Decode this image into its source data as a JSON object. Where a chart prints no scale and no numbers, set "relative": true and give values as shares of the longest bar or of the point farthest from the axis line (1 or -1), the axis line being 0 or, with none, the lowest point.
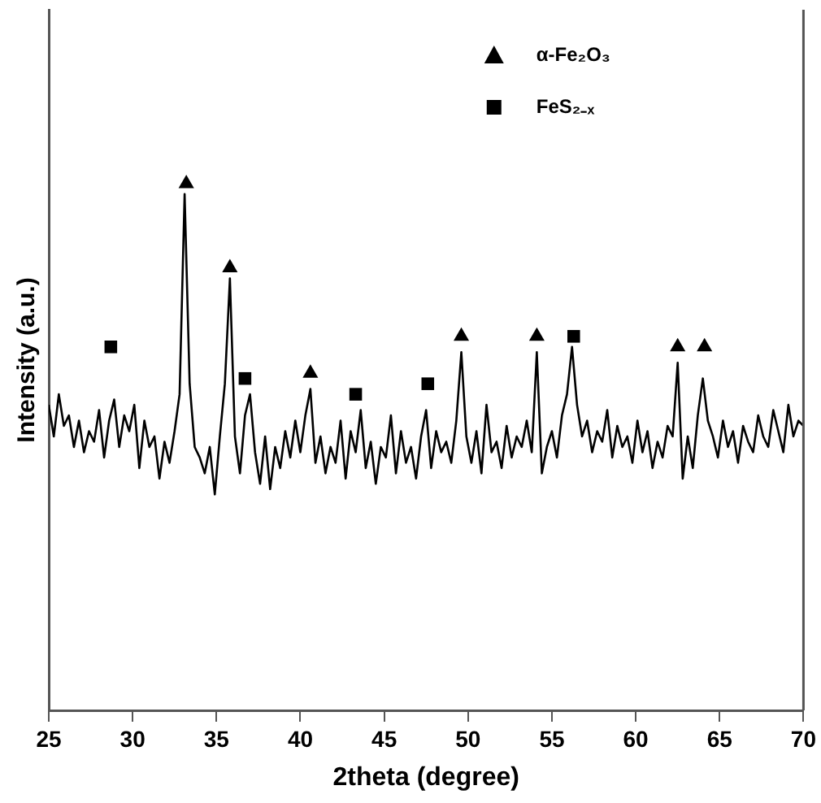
{
  "chart_data": {
    "type": "line",
    "xlabel": "2theta (degree)",
    "ylabel": "Intensity (a.u.)",
    "relative": true,
    "xlim": [
      25,
      70
    ],
    "xticks": [
      25,
      30,
      35,
      40,
      45,
      50,
      55,
      60,
      65,
      70
    ],
    "tick_labels": "x",
    "grid": false,
    "legend": "top right",
    "series": [
      {
        "color": "#000000",
        "marker": "none",
        "x": [
          25.0,
          25.3,
          25.6,
          25.9,
          26.2,
          26.5,
          26.8,
          27.1,
          27.4,
          27.7,
          28.0,
          28.3,
          28.6,
          28.9,
          29.2,
          29.5,
          29.8,
          30.1,
          30.4,
          30.7,
          31.0,
          31.3,
          31.6,
          31.9,
          32.2,
          32.5,
          32.8,
          33.1,
          33.4,
          33.7,
          34.0,
          34.3,
          34.6,
          34.9,
          35.2,
          35.5,
          35.8,
          36.1,
          36.4,
          36.7,
          37.0,
          37.3,
          37.6,
          37.9,
          38.2,
          38.5,
          38.8,
          39.1,
          39.4,
          39.7,
          40.0,
          40.3,
          40.6,
          40.9,
          41.2,
          41.5,
          41.8,
          42.1,
          42.4,
          42.7,
          43.0,
          43.3,
          43.6,
          43.9,
          44.2,
          44.5,
          44.8,
          45.1,
          45.4,
          45.7,
          46.0,
          46.3,
          46.6,
          46.9,
          47.2,
          47.5,
          47.8,
          48.1,
          48.4,
          48.7,
          49.0,
          49.3,
          49.6,
          49.9,
          50.2,
          50.5,
          50.8,
          51.1,
          51.4,
          51.7,
          52.0,
          52.3,
          52.6,
          52.9,
          53.2,
          53.5,
          53.8,
          54.1,
          54.4,
          54.7,
          55.0,
          55.3,
          55.6,
          55.9,
          56.2,
          56.5,
          56.8,
          57.1,
          57.4,
          57.7,
          58.0,
          58.3,
          58.6,
          58.9,
          59.2,
          59.5,
          59.8,
          60.1,
          60.4,
          60.7,
          61.0,
          61.3,
          61.6,
          61.9,
          62.2,
          62.5,
          62.8,
          63.1,
          63.4,
          63.7,
          64.0,
          64.3,
          64.6,
          64.9,
          65.2,
          65.5,
          65.8,
          66.1,
          66.4,
          66.7,
          67.0,
          67.3,
          67.6,
          67.9,
          68.2,
          68.5,
          68.8,
          69.1,
          69.4,
          69.7,
          70.0
        ],
        "values": [
          0.58,
          0.52,
          0.6,
          0.54,
          0.56,
          0.5,
          0.55,
          0.49,
          0.53,
          0.51,
          0.57,
          0.48,
          0.55,
          0.59,
          0.5,
          0.56,
          0.53,
          0.58,
          0.46,
          0.55,
          0.5,
          0.52,
          0.44,
          0.51,
          0.47,
          0.53,
          0.6,
          0.98,
          0.62,
          0.5,
          0.48,
          0.45,
          0.5,
          0.41,
          0.52,
          0.62,
          0.82,
          0.52,
          0.45,
          0.56,
          0.6,
          0.49,
          0.43,
          0.52,
          0.42,
          0.5,
          0.46,
          0.53,
          0.48,
          0.55,
          0.49,
          0.56,
          0.61,
          0.47,
          0.52,
          0.45,
          0.5,
          0.47,
          0.55,
          0.44,
          0.53,
          0.49,
          0.57,
          0.46,
          0.51,
          0.43,
          0.5,
          0.48,
          0.56,
          0.45,
          0.53,
          0.47,
          0.5,
          0.44,
          0.52,
          0.57,
          0.46,
          0.53,
          0.49,
          0.51,
          0.47,
          0.55,
          0.68,
          0.52,
          0.47,
          0.53,
          0.45,
          0.58,
          0.49,
          0.51,
          0.46,
          0.54,
          0.48,
          0.52,
          0.5,
          0.55,
          0.49,
          0.68,
          0.45,
          0.5,
          0.53,
          0.48,
          0.56,
          0.6,
          0.69,
          0.58,
          0.52,
          0.55,
          0.49,
          0.53,
          0.51,
          0.57,
          0.48,
          0.54,
          0.5,
          0.52,
          0.47,
          0.55,
          0.49,
          0.53,
          0.46,
          0.51,
          0.48,
          0.54,
          0.52,
          0.66,
          0.44,
          0.52,
          0.46,
          0.56,
          0.63,
          0.55,
          0.52,
          0.48,
          0.55,
          0.5,
          0.53,
          0.47,
          0.54,
          0.51,
          0.49,
          0.56,
          0.52,
          0.5,
          0.57,
          0.53,
          0.49,
          0.58,
          0.52,
          0.55,
          0.54
        ]
      },
      {
        "type": "scatter",
        "name": "α-Fe₂O₃",
        "color": "#000000",
        "marker": "triangle",
        "x": [
          33.2,
          35.8,
          40.6,
          49.6,
          54.1,
          62.5,
          64.1
        ],
        "values": [
          1.0,
          0.84,
          0.64,
          0.71,
          0.71,
          0.69,
          0.69
        ]
      },
      {
        "type": "scatter",
        "name": "FeS₂₋ₓ",
        "color": "#000000",
        "marker": "square",
        "x": [
          28.7,
          36.7,
          43.3,
          47.6,
          56.3
        ],
        "values": [
          0.69,
          0.63,
          0.6,
          0.62,
          0.71
        ]
      }
    ]
  }
}
